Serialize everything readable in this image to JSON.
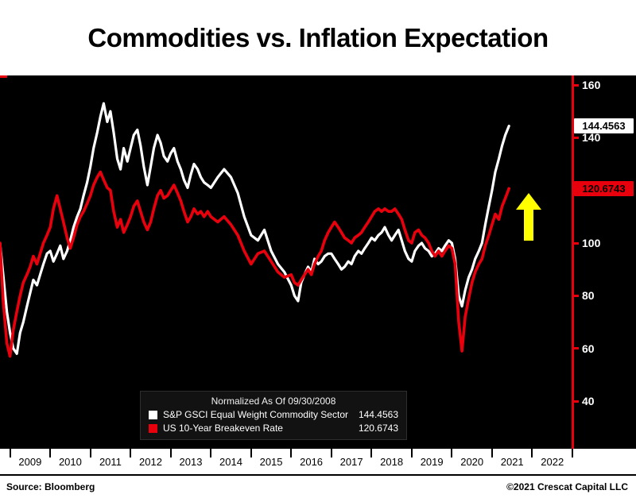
{
  "title": "Commodities vs. Inflation Expectation",
  "legend_title": "Normalized As Of 09/30/2008",
  "footer": {
    "source": "Source: Bloomberg",
    "copyright": "©2021 Crescat Capital LLC"
  },
  "chart_data": {
    "type": "line",
    "title": "Commodities vs. Inflation Expectation",
    "normalized_as_of": "09/30/2008",
    "background": "#000000",
    "axis_color": "#e8000d",
    "x_tick_labels": [
      "2009",
      "2010",
      "2011",
      "2012",
      "2013",
      "2014",
      "2015",
      "2016",
      "2017",
      "2018",
      "2019",
      "2020",
      "2021",
      "2022"
    ],
    "y_tick_labels": [
      160,
      140,
      120,
      100,
      80,
      60,
      40
    ],
    "x_range": [
      2008.75,
      2023.0
    ],
    "y_axis_range": [
      40,
      160
    ],
    "annotation": {
      "up_arrow_color": "#ffff00"
    },
    "series": [
      {
        "name": "S&P GSCI Equal Weight Commodity Sector",
        "color": "#ffffff",
        "value_label": "144.4563",
        "last_value": 144.4563,
        "points": [
          [
            2008.75,
            100
          ],
          [
            2008.83,
            88
          ],
          [
            2008.92,
            74
          ],
          [
            2009.0,
            66
          ],
          [
            2009.08,
            60
          ],
          [
            2009.17,
            58
          ],
          [
            2009.25,
            66
          ],
          [
            2009.33,
            70
          ],
          [
            2009.42,
            76
          ],
          [
            2009.5,
            81
          ],
          [
            2009.58,
            86
          ],
          [
            2009.67,
            84
          ],
          [
            2009.75,
            88
          ],
          [
            2009.83,
            92
          ],
          [
            2009.92,
            96
          ],
          [
            2010.0,
            97
          ],
          [
            2010.08,
            93
          ],
          [
            2010.17,
            96
          ],
          [
            2010.25,
            99
          ],
          [
            2010.33,
            94
          ],
          [
            2010.42,
            97
          ],
          [
            2010.5,
            101
          ],
          [
            2010.58,
            106
          ],
          [
            2010.67,
            110
          ],
          [
            2010.75,
            113
          ],
          [
            2010.83,
            118
          ],
          [
            2010.92,
            123
          ],
          [
            2011.0,
            129
          ],
          [
            2011.08,
            136
          ],
          [
            2011.17,
            142
          ],
          [
            2011.25,
            148
          ],
          [
            2011.33,
            153
          ],
          [
            2011.42,
            146
          ],
          [
            2011.5,
            150
          ],
          [
            2011.58,
            142
          ],
          [
            2011.67,
            132
          ],
          [
            2011.75,
            128
          ],
          [
            2011.83,
            136
          ],
          [
            2011.92,
            131
          ],
          [
            2012.0,
            136
          ],
          [
            2012.08,
            141
          ],
          [
            2012.17,
            143
          ],
          [
            2012.25,
            137
          ],
          [
            2012.33,
            129
          ],
          [
            2012.42,
            122
          ],
          [
            2012.5,
            129
          ],
          [
            2012.58,
            136
          ],
          [
            2012.67,
            141
          ],
          [
            2012.75,
            138
          ],
          [
            2012.83,
            133
          ],
          [
            2012.92,
            131
          ],
          [
            2013.0,
            134
          ],
          [
            2013.08,
            136
          ],
          [
            2013.17,
            131
          ],
          [
            2013.25,
            128
          ],
          [
            2013.33,
            124
          ],
          [
            2013.42,
            121
          ],
          [
            2013.5,
            126
          ],
          [
            2013.58,
            130
          ],
          [
            2013.67,
            128
          ],
          [
            2013.75,
            125
          ],
          [
            2013.83,
            123
          ],
          [
            2013.92,
            122
          ],
          [
            2014.0,
            121
          ],
          [
            2014.17,
            125
          ],
          [
            2014.33,
            128
          ],
          [
            2014.5,
            125
          ],
          [
            2014.67,
            119
          ],
          [
            2014.83,
            110
          ],
          [
            2015.0,
            103
          ],
          [
            2015.17,
            101
          ],
          [
            2015.33,
            105
          ],
          [
            2015.5,
            97
          ],
          [
            2015.67,
            92
          ],
          [
            2015.83,
            89
          ],
          [
            2016.0,
            84
          ],
          [
            2016.08,
            80
          ],
          [
            2016.17,
            78
          ],
          [
            2016.25,
            85
          ],
          [
            2016.33,
            88
          ],
          [
            2016.42,
            91
          ],
          [
            2016.5,
            89
          ],
          [
            2016.58,
            94
          ],
          [
            2016.67,
            92
          ],
          [
            2016.75,
            93
          ],
          [
            2016.83,
            95
          ],
          [
            2016.92,
            96
          ],
          [
            2017.0,
            96
          ],
          [
            2017.08,
            94
          ],
          [
            2017.17,
            92
          ],
          [
            2017.25,
            90
          ],
          [
            2017.33,
            91
          ],
          [
            2017.42,
            93
          ],
          [
            2017.5,
            92
          ],
          [
            2017.58,
            95
          ],
          [
            2017.67,
            97
          ],
          [
            2017.75,
            96
          ],
          [
            2017.83,
            98
          ],
          [
            2017.92,
            100
          ],
          [
            2018.0,
            102
          ],
          [
            2018.08,
            101
          ],
          [
            2018.17,
            103
          ],
          [
            2018.25,
            104
          ],
          [
            2018.33,
            106
          ],
          [
            2018.42,
            103
          ],
          [
            2018.5,
            101
          ],
          [
            2018.58,
            103
          ],
          [
            2018.67,
            105
          ],
          [
            2018.75,
            101
          ],
          [
            2018.83,
            97
          ],
          [
            2018.92,
            94
          ],
          [
            2019.0,
            93
          ],
          [
            2019.08,
            97
          ],
          [
            2019.17,
            99
          ],
          [
            2019.25,
            100
          ],
          [
            2019.33,
            98
          ],
          [
            2019.42,
            97
          ],
          [
            2019.5,
            95
          ],
          [
            2019.58,
            96
          ],
          [
            2019.67,
            98
          ],
          [
            2019.75,
            97
          ],
          [
            2019.83,
            99
          ],
          [
            2019.92,
            101
          ],
          [
            2020.0,
            100
          ],
          [
            2020.08,
            94
          ],
          [
            2020.17,
            80
          ],
          [
            2020.25,
            76
          ],
          [
            2020.33,
            82
          ],
          [
            2020.42,
            87
          ],
          [
            2020.5,
            90
          ],
          [
            2020.58,
            94
          ],
          [
            2020.67,
            97
          ],
          [
            2020.75,
            100
          ],
          [
            2020.83,
            107
          ],
          [
            2020.92,
            114
          ],
          [
            2021.0,
            120
          ],
          [
            2021.08,
            127
          ],
          [
            2021.17,
            132
          ],
          [
            2021.25,
            137
          ],
          [
            2021.33,
            141
          ],
          [
            2021.42,
            144.4563
          ]
        ]
      },
      {
        "name": "US 10-Year Breakeven Rate",
        "color": "#e8000d",
        "value_label": "120.6743",
        "last_value": 120.6743,
        "points": [
          [
            2008.75,
            100
          ],
          [
            2008.83,
            78
          ],
          [
            2008.92,
            62
          ],
          [
            2009.0,
            57
          ],
          [
            2009.08,
            67
          ],
          [
            2009.17,
            74
          ],
          [
            2009.25,
            80
          ],
          [
            2009.33,
            85
          ],
          [
            2009.42,
            88
          ],
          [
            2009.5,
            91
          ],
          [
            2009.58,
            95
          ],
          [
            2009.67,
            92
          ],
          [
            2009.75,
            96
          ],
          [
            2009.83,
            100
          ],
          [
            2009.92,
            103
          ],
          [
            2010.0,
            106
          ],
          [
            2010.08,
            113
          ],
          [
            2010.17,
            118
          ],
          [
            2010.25,
            113
          ],
          [
            2010.33,
            108
          ],
          [
            2010.42,
            102
          ],
          [
            2010.5,
            98
          ],
          [
            2010.58,
            102
          ],
          [
            2010.67,
            107
          ],
          [
            2010.75,
            110
          ],
          [
            2010.83,
            112
          ],
          [
            2010.92,
            115
          ],
          [
            2011.0,
            118
          ],
          [
            2011.08,
            122
          ],
          [
            2011.17,
            125
          ],
          [
            2011.25,
            127
          ],
          [
            2011.33,
            124
          ],
          [
            2011.42,
            121
          ],
          [
            2011.5,
            120
          ],
          [
            2011.58,
            112
          ],
          [
            2011.67,
            106
          ],
          [
            2011.75,
            109
          ],
          [
            2011.83,
            104
          ],
          [
            2011.92,
            107
          ],
          [
            2012.0,
            110
          ],
          [
            2012.08,
            114
          ],
          [
            2012.17,
            116
          ],
          [
            2012.25,
            112
          ],
          [
            2012.33,
            108
          ],
          [
            2012.42,
            105
          ],
          [
            2012.5,
            108
          ],
          [
            2012.58,
            113
          ],
          [
            2012.67,
            118
          ],
          [
            2012.75,
            120
          ],
          [
            2012.83,
            117
          ],
          [
            2012.92,
            118
          ],
          [
            2013.0,
            120
          ],
          [
            2013.08,
            122
          ],
          [
            2013.17,
            119
          ],
          [
            2013.25,
            116
          ],
          [
            2013.33,
            112
          ],
          [
            2013.42,
            108
          ],
          [
            2013.5,
            110
          ],
          [
            2013.58,
            113
          ],
          [
            2013.67,
            111
          ],
          [
            2013.75,
            112
          ],
          [
            2013.83,
            110
          ],
          [
            2013.92,
            112
          ],
          [
            2014.0,
            110
          ],
          [
            2014.17,
            108
          ],
          [
            2014.33,
            110
          ],
          [
            2014.5,
            107
          ],
          [
            2014.67,
            103
          ],
          [
            2014.83,
            97
          ],
          [
            2015.0,
            92
          ],
          [
            2015.17,
            96
          ],
          [
            2015.33,
            97
          ],
          [
            2015.5,
            93
          ],
          [
            2015.67,
            89
          ],
          [
            2015.83,
            87
          ],
          [
            2016.0,
            88
          ],
          [
            2016.08,
            85
          ],
          [
            2016.17,
            84
          ],
          [
            2016.25,
            86
          ],
          [
            2016.33,
            88
          ],
          [
            2016.42,
            90
          ],
          [
            2016.5,
            88
          ],
          [
            2016.58,
            92
          ],
          [
            2016.67,
            95
          ],
          [
            2016.75,
            97
          ],
          [
            2016.83,
            101
          ],
          [
            2016.92,
            104
          ],
          [
            2017.0,
            106
          ],
          [
            2017.08,
            108
          ],
          [
            2017.17,
            106
          ],
          [
            2017.25,
            104
          ],
          [
            2017.33,
            102
          ],
          [
            2017.42,
            101
          ],
          [
            2017.5,
            100
          ],
          [
            2017.58,
            102
          ],
          [
            2017.67,
            103
          ],
          [
            2017.75,
            104
          ],
          [
            2017.83,
            106
          ],
          [
            2017.92,
            108
          ],
          [
            2018.0,
            110
          ],
          [
            2018.08,
            112
          ],
          [
            2018.17,
            113
          ],
          [
            2018.25,
            112
          ],
          [
            2018.33,
            113
          ],
          [
            2018.42,
            112
          ],
          [
            2018.5,
            112
          ],
          [
            2018.58,
            113
          ],
          [
            2018.67,
            111
          ],
          [
            2018.75,
            109
          ],
          [
            2018.83,
            105
          ],
          [
            2018.92,
            101
          ],
          [
            2019.0,
            100
          ],
          [
            2019.08,
            104
          ],
          [
            2019.17,
            105
          ],
          [
            2019.25,
            103
          ],
          [
            2019.33,
            102
          ],
          [
            2019.42,
            100
          ],
          [
            2019.5,
            97
          ],
          [
            2019.58,
            95
          ],
          [
            2019.67,
            97
          ],
          [
            2019.75,
            95
          ],
          [
            2019.83,
            97
          ],
          [
            2019.92,
            99
          ],
          [
            2020.0,
            98
          ],
          [
            2020.08,
            92
          ],
          [
            2020.17,
            70
          ],
          [
            2020.25,
            59
          ],
          [
            2020.33,
            72
          ],
          [
            2020.42,
            79
          ],
          [
            2020.5,
            85
          ],
          [
            2020.58,
            89
          ],
          [
            2020.67,
            92
          ],
          [
            2020.75,
            94
          ],
          [
            2020.83,
            99
          ],
          [
            2020.92,
            103
          ],
          [
            2021.0,
            107
          ],
          [
            2021.08,
            111
          ],
          [
            2021.17,
            109
          ],
          [
            2021.25,
            114
          ],
          [
            2021.33,
            117
          ],
          [
            2021.42,
            120.6743
          ]
        ]
      }
    ]
  }
}
